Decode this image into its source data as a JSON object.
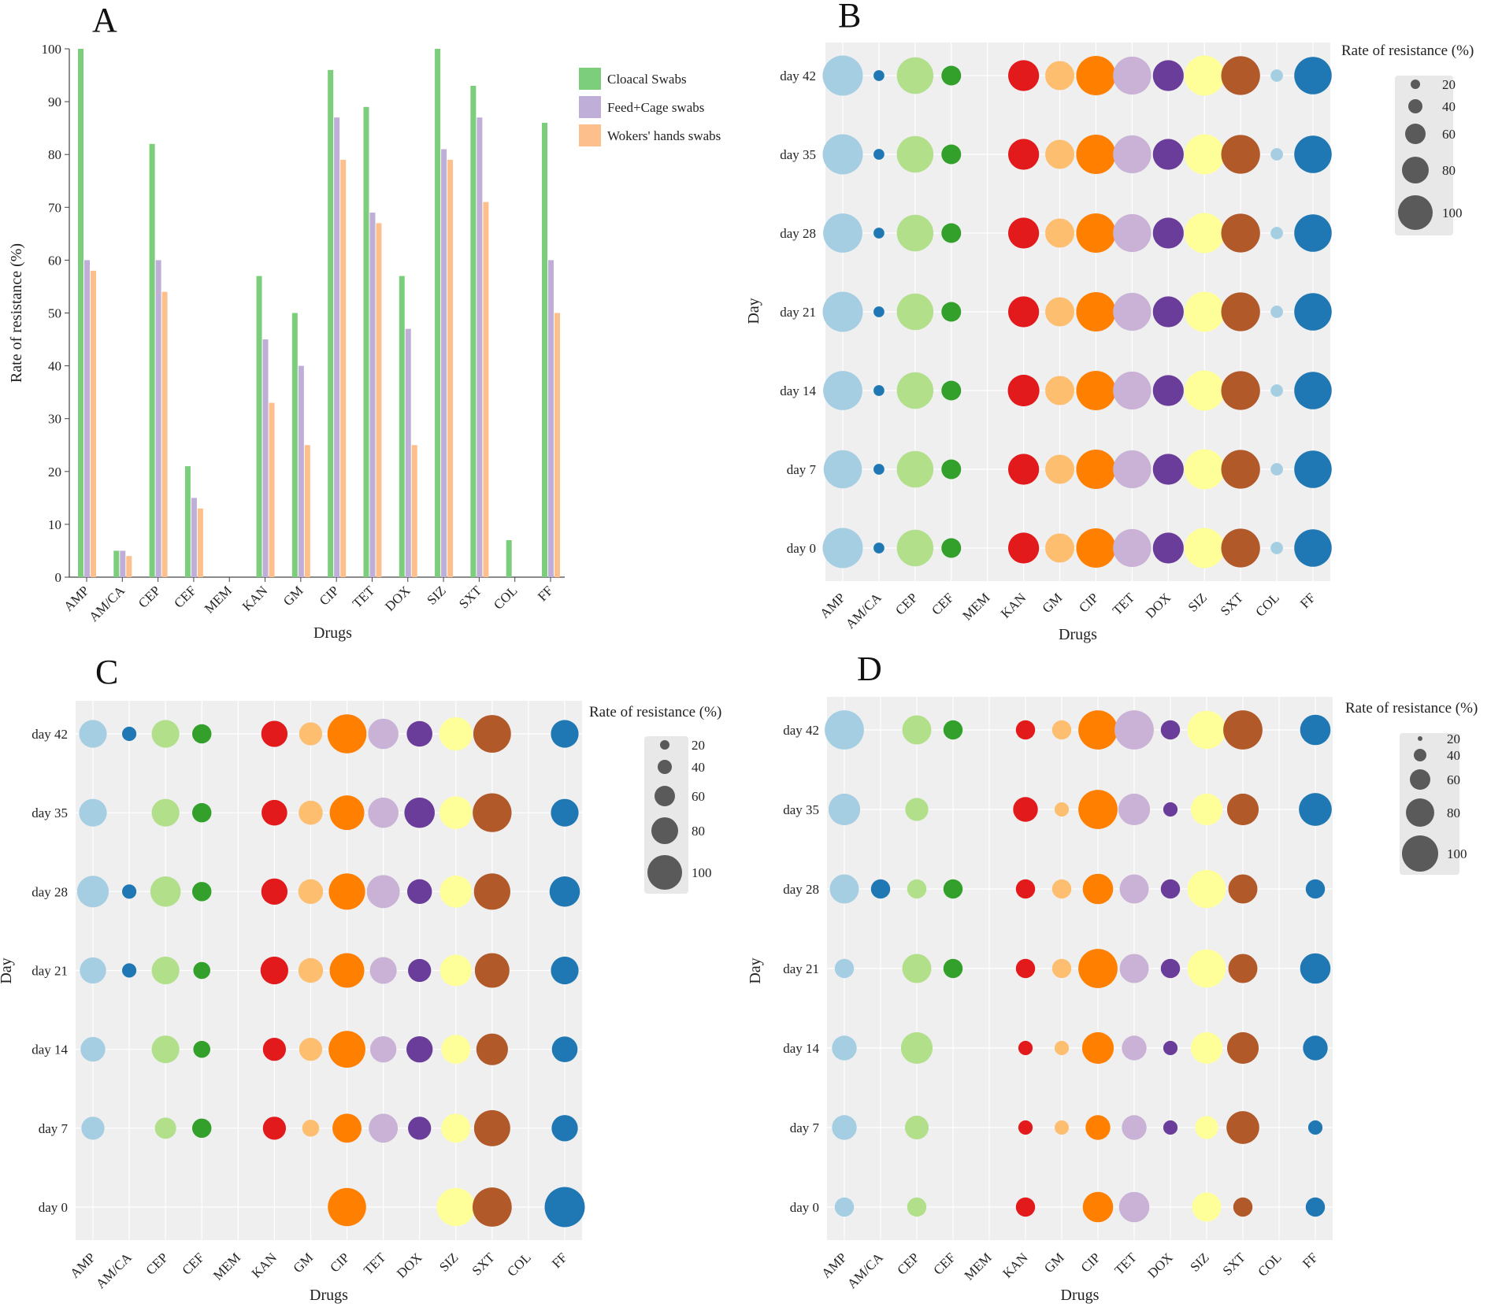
{
  "drugs": [
    "AMP",
    "AM/CA",
    "CEP",
    "CEF",
    "MEM",
    "KAN",
    "GM",
    "CIP",
    "TET",
    "DOX",
    "SIZ",
    "SXT",
    "COL",
    "FF"
  ],
  "drug_colors": [
    "#a6cee3",
    "#1f78b4",
    "#b2df8a",
    "#33a02c",
    "#fb9a99",
    "#e31a1c",
    "#fdbf6f",
    "#ff7f00",
    "#cab2d6",
    "#6a3d9a",
    "#ffff99",
    "#b15928",
    "#a6cee3",
    "#1f78b4"
  ],
  "chart_data": [
    {
      "panel": "A",
      "type": "bar",
      "title": "",
      "xlabel": "Drugs",
      "ylabel": "Rate of resistance (%)",
      "ylim": [
        0,
        100
      ],
      "yticks": [
        "0",
        "10",
        "20",
        "30",
        "40",
        "50",
        "60",
        "70",
        "80",
        "90",
        "100"
      ],
      "legend_position": "top-right",
      "categories": [
        "AMP",
        "AM/CA",
        "CEP",
        "CEF",
        "MEM",
        "KAN",
        "GM",
        "CIP",
        "TET",
        "DOX",
        "SIZ",
        "SXT",
        "COL",
        "FF"
      ],
      "series": [
        {
          "name": "Cloacal Swabs",
          "color": "#7ccd7c",
          "values": [
            100,
            5,
            82,
            21,
            0,
            57,
            50,
            96,
            89,
            57,
            100,
            93,
            7,
            86
          ]
        },
        {
          "name": "Feed+Cage swabs",
          "color": "#bfaed8",
          "values": [
            60,
            5,
            60,
            15,
            0,
            45,
            40,
            87,
            69,
            47,
            81,
            87,
            0,
            60
          ]
        },
        {
          "name": "Wokers' hands swabs",
          "color": "#fdbf8c",
          "values": [
            58,
            4,
            54,
            13,
            0,
            33,
            25,
            79,
            67,
            25,
            79,
            71,
            0,
            50
          ]
        }
      ]
    },
    {
      "panel": "B",
      "type": "scatter",
      "subtype": "bubble",
      "xlabel": "Drugs",
      "ylabel": "Day",
      "days": [
        "day 0",
        "day 7",
        "day 14",
        "day 21",
        "day 28",
        "day 35",
        "day 42"
      ],
      "categories": [
        "AMP",
        "AM/CA",
        "CEP",
        "CEF",
        "MEM",
        "KAN",
        "GM",
        "CIP",
        "TET",
        "DOX",
        "SIZ",
        "SXT",
        "COL",
        "FF"
      ],
      "size_legend_title": "Rate of resistance (%)",
      "size_legend": [
        "20",
        "40",
        "60",
        "80",
        "100"
      ],
      "values": [
        [
          100,
          5,
          82,
          21,
          0,
          57,
          50,
          96,
          89,
          57,
          100,
          93,
          7,
          86
        ],
        [
          90,
          5,
          82,
          21,
          0,
          57,
          50,
          96,
          89,
          57,
          100,
          93,
          7,
          86
        ],
        [
          95,
          5,
          82,
          21,
          0,
          60,
          50,
          96,
          89,
          57,
          100,
          93,
          7,
          86
        ],
        [
          100,
          5,
          82,
          21,
          0,
          57,
          50,
          96,
          89,
          57,
          100,
          93,
          7,
          86
        ],
        [
          95,
          5,
          82,
          21,
          0,
          57,
          50,
          96,
          89,
          57,
          100,
          93,
          7,
          86
        ],
        [
          100,
          5,
          82,
          21,
          0,
          57,
          50,
          96,
          89,
          57,
          100,
          93,
          7,
          86
        ],
        [
          100,
          5,
          82,
          21,
          0,
          57,
          50,
          96,
          89,
          57,
          100,
          93,
          7,
          86
        ]
      ]
    },
    {
      "panel": "C",
      "type": "scatter",
      "subtype": "bubble",
      "xlabel": "Drugs",
      "ylabel": "Day",
      "days": [
        "day 0",
        "day 7",
        "day 14",
        "day 21",
        "day 28",
        "day 35",
        "day 42"
      ],
      "categories": [
        "AMP",
        "AM/CA",
        "CEP",
        "CEF",
        "MEM",
        "KAN",
        "GM",
        "CIP",
        "TET",
        "DOX",
        "SIZ",
        "SXT",
        "COL",
        "FF"
      ],
      "size_legend_title": "Rate of resistance (%)",
      "size_legend": [
        "20",
        "40",
        "60",
        "80",
        "100"
      ],
      "values": [
        [
          0,
          0,
          0,
          0,
          0,
          0,
          0,
          90,
          0,
          0,
          90,
          95,
          0,
          100
        ],
        [
          30,
          0,
          25,
          20,
          0,
          30,
          15,
          50,
          50,
          30,
          50,
          80,
          0,
          40
        ],
        [
          35,
          0,
          45,
          15,
          0,
          30,
          30,
          83,
          40,
          40,
          50,
          60,
          0,
          38
        ],
        [
          40,
          10,
          45,
          15,
          0,
          45,
          35,
          73,
          42,
          30,
          60,
          73,
          0,
          45
        ],
        [
          60,
          10,
          55,
          20,
          0,
          40,
          35,
          81,
          66,
          35,
          62,
          81,
          0,
          55
        ],
        [
          45,
          0,
          45,
          20,
          0,
          38,
          33,
          73,
          55,
          55,
          65,
          93,
          0,
          45
        ],
        [
          45,
          10,
          45,
          20,
          0,
          40,
          30,
          94,
          55,
          38,
          67,
          87,
          0,
          45
        ]
      ]
    },
    {
      "panel": "D",
      "type": "scatter",
      "subtype": "bubble",
      "xlabel": "Drugs",
      "ylabel": "Day",
      "days": [
        "day 0",
        "day 7",
        "day 14",
        "day 21",
        "day 28",
        "day 35",
        "day 42"
      ],
      "categories": [
        "AMP",
        "AM/CA",
        "CEP",
        "CEF",
        "MEM",
        "KAN",
        "GM",
        "CIP",
        "TET",
        "DOX",
        "SIZ",
        "SXT",
        "COL",
        "FF"
      ],
      "size_legend_title": "Rate of resistance (%)",
      "size_legend": [
        "20",
        "40",
        "60",
        "80",
        "100"
      ],
      "values": [
        [
          20,
          0,
          20,
          0,
          0,
          20,
          0,
          55,
          55,
          0,
          50,
          20,
          0,
          20
        ],
        [
          35,
          0,
          32,
          0,
          0,
          10,
          10,
          35,
          35,
          10,
          30,
          65,
          0,
          10
        ],
        [
          35,
          0,
          60,
          0,
          0,
          10,
          10,
          60,
          35,
          10,
          60,
          60,
          0,
          35
        ],
        [
          20,
          0,
          50,
          20,
          0,
          20,
          20,
          95,
          50,
          20,
          90,
          50,
          0,
          55
        ],
        [
          50,
          20,
          20,
          20,
          0,
          20,
          20,
          55,
          50,
          20,
          90,
          50,
          0,
          20
        ],
        [
          60,
          0,
          30,
          0,
          0,
          35,
          10,
          95,
          60,
          10,
          60,
          60,
          0,
          65
        ],
        [
          95,
          0,
          50,
          20,
          0,
          20,
          20,
          95,
          95,
          20,
          90,
          95,
          0,
          55
        ]
      ]
    }
  ],
  "panel_letters": {
    "a": "A",
    "b": "B",
    "c": "C",
    "d": "D"
  }
}
